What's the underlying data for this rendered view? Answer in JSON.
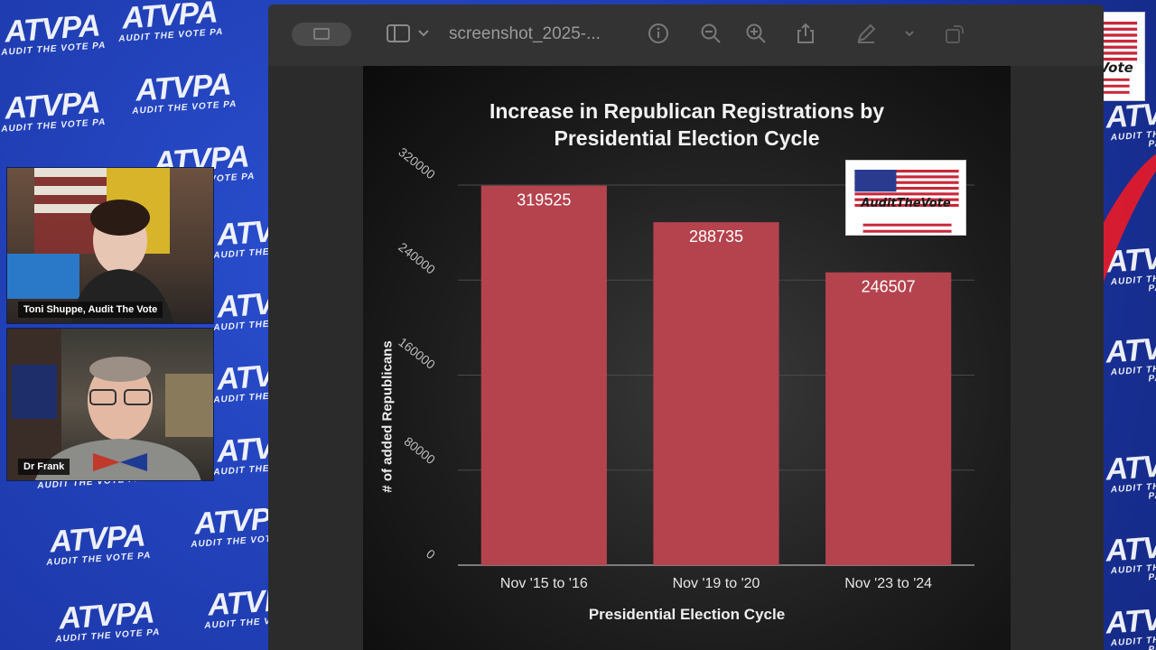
{
  "background": {
    "brand_main": "ATVPA",
    "brand_sub": "AUDIT THE VOTE PA",
    "colors": {
      "wall": "#1f3fb8",
      "accent_red": "#e11b2c"
    }
  },
  "participants": [
    {
      "name": "Toni Shuppe, Audit The Vote"
    },
    {
      "name": "Dr Frank"
    }
  ],
  "window": {
    "file_title": "screenshot_2025-...",
    "toolbar_icons": [
      "sidebar-icon",
      "chevron-down-icon",
      "info-icon",
      "zoom-out-icon",
      "zoom-in-icon",
      "share-icon",
      "markup-pen-icon",
      "chevron-down-icon",
      "rotate-icon"
    ]
  },
  "logo": {
    "text": "AuditTheVote"
  },
  "chart_data": {
    "type": "bar",
    "title": "Increase in Republican Registrations by Presidential Election Cycle",
    "title_lines": [
      "Increase in Republican Registrations by",
      "Presidential Election Cycle"
    ],
    "xlabel": "Presidential Election Cycle",
    "ylabel": "# of added Republicans",
    "categories": [
      "Nov '15 to '16",
      "Nov '19 to '20",
      "Nov '23 to '24"
    ],
    "values": [
      319525,
      288735,
      246507
    ],
    "data_labels": [
      "319525",
      "288735",
      "246507"
    ],
    "y_ticks": [
      "0",
      "80000",
      "160000",
      "240000",
      "320000"
    ],
    "ylim": [
      0,
      320000
    ],
    "grid": true,
    "bar_color": "#b5434e"
  }
}
